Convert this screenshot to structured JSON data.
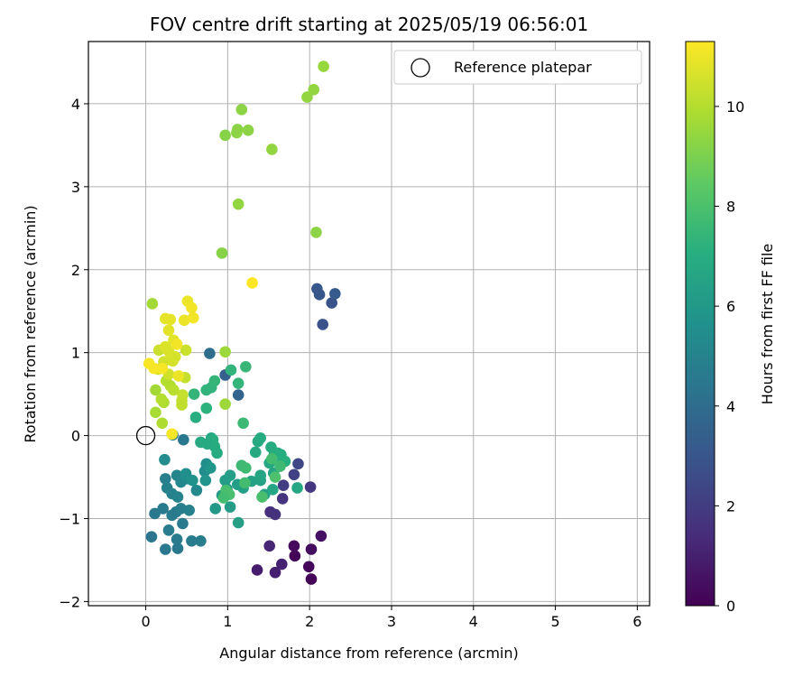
{
  "chart_data": {
    "type": "scatter",
    "title": "FOV centre drift starting at 2025/05/19 06:56:01",
    "xlabel": "Angular distance from reference (arcmin)",
    "ylabel": "Rotation from reference (arcmin)",
    "xlim": [
      -0.7,
      6.15
    ],
    "ylim": [
      -2.05,
      4.75
    ],
    "xticks": [
      0,
      1,
      2,
      3,
      4,
      5,
      6
    ],
    "yticks": [
      -2,
      -1,
      0,
      1,
      2,
      3,
      4
    ],
    "grid": true,
    "legend": {
      "position": "top-right",
      "entries": [
        "Reference platepar"
      ]
    },
    "reference_point": {
      "x": 0,
      "y": 0,
      "label": "Reference platepar"
    },
    "colorbar": {
      "label": "Hours from first FF file",
      "colormap": "viridis",
      "range": [
        0,
        11.3
      ],
      "ticks": [
        0,
        2,
        4,
        6,
        8,
        10
      ]
    },
    "points": [
      {
        "x": 1.82,
        "y": -1.45,
        "h": 0.1
      },
      {
        "x": 2.02,
        "y": -1.73,
        "h": 0.1
      },
      {
        "x": 1.99,
        "y": -1.58,
        "h": 0.2
      },
      {
        "x": 1.81,
        "y": -1.33,
        "h": 0.3
      },
      {
        "x": 2.02,
        "y": -1.37,
        "h": 0.4
      },
      {
        "x": 2.14,
        "y": -1.21,
        "h": 0.5
      },
      {
        "x": 1.36,
        "y": -1.62,
        "h": 0.9
      },
      {
        "x": 1.58,
        "y": -1.65,
        "h": 1.0
      },
      {
        "x": 1.66,
        "y": -1.55,
        "h": 1.1
      },
      {
        "x": 1.51,
        "y": -1.33,
        "h": 1.2
      },
      {
        "x": 1.52,
        "y": -0.92,
        "h": 1.5
      },
      {
        "x": 1.58,
        "y": -0.95,
        "h": 1.6
      },
      {
        "x": 1.67,
        "y": -0.76,
        "h": 1.7
      },
      {
        "x": 2.01,
        "y": -0.62,
        "h": 1.8
      },
      {
        "x": 1.68,
        "y": -0.6,
        "h": 2.0
      },
      {
        "x": 1.81,
        "y": -0.47,
        "h": 2.2
      },
      {
        "x": 1.86,
        "y": -0.34,
        "h": 2.4
      },
      {
        "x": 2.16,
        "y": 1.34,
        "h": 2.9
      },
      {
        "x": 2.27,
        "y": 1.6,
        "h": 2.9
      },
      {
        "x": 2.12,
        "y": 1.7,
        "h": 3.0
      },
      {
        "x": 2.09,
        "y": 1.77,
        "h": 3.1
      },
      {
        "x": 2.31,
        "y": 1.71,
        "h": 3.2
      },
      {
        "x": 0.97,
        "y": 0.73,
        "h": 3.4
      },
      {
        "x": 1.13,
        "y": 0.49,
        "h": 3.6
      },
      {
        "x": 0.78,
        "y": 0.99,
        "h": 4.0
      },
      {
        "x": 0.46,
        "y": -0.05,
        "h": 4.5
      },
      {
        "x": 0.33,
        "y": 0.01,
        "h": 4.6
      },
      {
        "x": 0.07,
        "y": -1.22,
        "h": 4.4
      },
      {
        "x": 0.24,
        "y": -1.37,
        "h": 4.5
      },
      {
        "x": 0.39,
        "y": -1.36,
        "h": 4.5
      },
      {
        "x": 0.38,
        "y": -1.25,
        "h": 4.6
      },
      {
        "x": 0.56,
        "y": -1.27,
        "h": 4.7
      },
      {
        "x": 0.67,
        "y": -1.27,
        "h": 4.8
      },
      {
        "x": 0.45,
        "y": -1.06,
        "h": 4.6
      },
      {
        "x": 0.28,
        "y": -1.14,
        "h": 4.7
      },
      {
        "x": 0.11,
        "y": -0.94,
        "h": 4.5
      },
      {
        "x": 0.21,
        "y": -0.88,
        "h": 4.6
      },
      {
        "x": 0.32,
        "y": -0.96,
        "h": 4.7
      },
      {
        "x": 0.37,
        "y": -0.92,
        "h": 4.6
      },
      {
        "x": 0.43,
        "y": -0.88,
        "h": 4.8
      },
      {
        "x": 0.53,
        "y": -0.9,
        "h": 4.9
      },
      {
        "x": 0.24,
        "y": -0.52,
        "h": 4.8
      },
      {
        "x": 0.26,
        "y": -0.63,
        "h": 4.9
      },
      {
        "x": 0.32,
        "y": -0.7,
        "h": 5.0
      },
      {
        "x": 0.39,
        "y": -0.74,
        "h": 5.0
      },
      {
        "x": 0.38,
        "y": -0.48,
        "h": 5.1
      },
      {
        "x": 0.43,
        "y": -0.56,
        "h": 5.2
      },
      {
        "x": 0.5,
        "y": -0.52,
        "h": 5.3
      },
      {
        "x": 0.62,
        "y": -0.66,
        "h": 5.3
      },
      {
        "x": 0.72,
        "y": -0.43,
        "h": 5.5
      },
      {
        "x": 0.74,
        "y": -0.34,
        "h": 5.6
      },
      {
        "x": 0.23,
        "y": -0.29,
        "h": 5.4
      },
      {
        "x": 0.49,
        "y": -0.46,
        "h": 5.6
      },
      {
        "x": 0.57,
        "y": -0.54,
        "h": 5.7
      },
      {
        "x": 0.73,
        "y": -0.54,
        "h": 5.8
      },
      {
        "x": 0.79,
        "y": -0.39,
        "h": 5.9
      },
      {
        "x": 0.85,
        "y": -0.88,
        "h": 6.0
      },
      {
        "x": 0.93,
        "y": -0.72,
        "h": 6.1
      },
      {
        "x": 0.99,
        "y": -0.64,
        "h": 6.1
      },
      {
        "x": 1.03,
        "y": -0.86,
        "h": 6.2
      },
      {
        "x": 0.97,
        "y": -0.54,
        "h": 6.2
      },
      {
        "x": 1.03,
        "y": -0.48,
        "h": 6.3
      },
      {
        "x": 1.12,
        "y": -0.59,
        "h": 6.3
      },
      {
        "x": 1.13,
        "y": -1.05,
        "h": 6.4
      },
      {
        "x": 1.19,
        "y": -0.63,
        "h": 6.4
      },
      {
        "x": 1.29,
        "y": -0.55,
        "h": 6.5
      },
      {
        "x": 1.4,
        "y": -0.54,
        "h": 6.5
      },
      {
        "x": 1.45,
        "y": -0.71,
        "h": 6.5
      },
      {
        "x": 1.4,
        "y": -0.48,
        "h": 6.6
      },
      {
        "x": 1.55,
        "y": -0.65,
        "h": 6.6
      },
      {
        "x": 1.56,
        "y": -0.45,
        "h": 6.6
      },
      {
        "x": 1.85,
        "y": -0.63,
        "h": 6.7
      },
      {
        "x": 1.51,
        "y": -0.33,
        "h": 6.7
      },
      {
        "x": 1.57,
        "y": -0.22,
        "h": 6.7
      },
      {
        "x": 1.34,
        "y": -0.2,
        "h": 6.8
      },
      {
        "x": 1.37,
        "y": -0.07,
        "h": 6.8
      },
      {
        "x": 1.4,
        "y": -0.03,
        "h": 6.9
      },
      {
        "x": 1.63,
        "y": -0.29,
        "h": 6.9
      },
      {
        "x": 1.53,
        "y": -0.14,
        "h": 6.9
      },
      {
        "x": 1.61,
        "y": -0.21,
        "h": 7.0
      },
      {
        "x": 1.65,
        "y": -0.23,
        "h": 7.0
      },
      {
        "x": 1.7,
        "y": -0.31,
        "h": 7.1
      },
      {
        "x": 0.67,
        "y": -0.08,
        "h": 6.8
      },
      {
        "x": 0.8,
        "y": -0.03,
        "h": 6.7
      },
      {
        "x": 0.84,
        "y": -0.13,
        "h": 6.9
      },
      {
        "x": 0.87,
        "y": -0.21,
        "h": 6.9
      },
      {
        "x": 0.82,
        "y": -0.05,
        "h": 7.0
      },
      {
        "x": 0.75,
        "y": -0.1,
        "h": 6.8
      },
      {
        "x": 0.61,
        "y": 0.22,
        "h": 7.0
      },
      {
        "x": 0.74,
        "y": 0.33,
        "h": 7.2
      },
      {
        "x": 0.74,
        "y": 0.55,
        "h": 7.3
      },
      {
        "x": 0.8,
        "y": 0.58,
        "h": 7.3
      },
      {
        "x": 0.84,
        "y": 0.66,
        "h": 7.4
      },
      {
        "x": 0.59,
        "y": 0.5,
        "h": 7.4
      },
      {
        "x": 1.04,
        "y": 0.79,
        "h": 7.3
      },
      {
        "x": 1.13,
        "y": 0.63,
        "h": 7.4
      },
      {
        "x": 1.22,
        "y": 0.83,
        "h": 7.5
      },
      {
        "x": 1.19,
        "y": 0.15,
        "h": 7.6
      },
      {
        "x": 1.17,
        "y": -0.36,
        "h": 7.6
      },
      {
        "x": 1.22,
        "y": -0.39,
        "h": 7.7
      },
      {
        "x": 1.64,
        "y": -0.37,
        "h": 7.7
      },
      {
        "x": 1.54,
        "y": -0.28,
        "h": 7.8
      },
      {
        "x": 1.21,
        "y": -0.57,
        "h": 7.8
      },
      {
        "x": 0.98,
        "y": -0.66,
        "h": 7.9
      },
      {
        "x": 1.02,
        "y": -0.71,
        "h": 7.9
      },
      {
        "x": 0.95,
        "y": -0.75,
        "h": 7.8
      },
      {
        "x": 1.42,
        "y": -0.74,
        "h": 7.9
      },
      {
        "x": 1.58,
        "y": -0.5,
        "h": 8.0
      },
      {
        "x": 0.93,
        "y": 2.2,
        "h": 9.2
      },
      {
        "x": 0.97,
        "y": 3.62,
        "h": 9.2
      },
      {
        "x": 1.11,
        "y": 3.65,
        "h": 9.3
      },
      {
        "x": 1.12,
        "y": 3.69,
        "h": 9.3
      },
      {
        "x": 1.25,
        "y": 3.68,
        "h": 9.3
      },
      {
        "x": 1.17,
        "y": 3.93,
        "h": 9.3
      },
      {
        "x": 1.54,
        "y": 3.45,
        "h": 9.4
      },
      {
        "x": 1.13,
        "y": 2.79,
        "h": 9.4
      },
      {
        "x": 2.08,
        "y": 2.45,
        "h": 9.3
      },
      {
        "x": 1.97,
        "y": 4.08,
        "h": 9.4
      },
      {
        "x": 2.05,
        "y": 4.17,
        "h": 9.4
      },
      {
        "x": 2.17,
        "y": 4.45,
        "h": 9.5
      },
      {
        "x": 0.97,
        "y": 1.01,
        "h": 9.6
      },
      {
        "x": 0.97,
        "y": 0.38,
        "h": 9.6
      },
      {
        "x": 0.08,
        "y": 1.59,
        "h": 9.7
      },
      {
        "x": 0.12,
        "y": 0.55,
        "h": 9.7
      },
      {
        "x": 0.12,
        "y": 0.28,
        "h": 9.8
      },
      {
        "x": 0.2,
        "y": 0.15,
        "h": 9.9
      },
      {
        "x": 0.22,
        "y": 0.4,
        "h": 9.9
      },
      {
        "x": 0.19,
        "y": 0.44,
        "h": 10.0
      },
      {
        "x": 0.3,
        "y": 0.6,
        "h": 10.0
      },
      {
        "x": 0.25,
        "y": 0.66,
        "h": 10.0
      },
      {
        "x": 0.34,
        "y": 0.55,
        "h": 10.1
      },
      {
        "x": 0.44,
        "y": 0.42,
        "h": 10.2
      },
      {
        "x": 0.44,
        "y": 0.37,
        "h": 10.2
      },
      {
        "x": 0.45,
        "y": 0.49,
        "h": 10.3
      },
      {
        "x": 0.48,
        "y": 0.7,
        "h": 10.3
      },
      {
        "x": 0.49,
        "y": 1.03,
        "h": 10.4
      },
      {
        "x": 0.16,
        "y": 1.03,
        "h": 10.4
      },
      {
        "x": 0.15,
        "y": 0.8,
        "h": 10.5
      },
      {
        "x": 0.22,
        "y": 0.89,
        "h": 10.5
      },
      {
        "x": 0.28,
        "y": 0.74,
        "h": 10.5
      },
      {
        "x": 0.3,
        "y": 0.93,
        "h": 10.6
      },
      {
        "x": 0.33,
        "y": 0.9,
        "h": 10.6
      },
      {
        "x": 0.36,
        "y": 0.95,
        "h": 10.6
      },
      {
        "x": 0.28,
        "y": 1.02,
        "h": 10.7
      },
      {
        "x": 0.24,
        "y": 1.07,
        "h": 10.7
      },
      {
        "x": 0.34,
        "y": 1.15,
        "h": 10.8
      },
      {
        "x": 0.28,
        "y": 1.27,
        "h": 10.8
      },
      {
        "x": 0.24,
        "y": 1.41,
        "h": 10.9
      },
      {
        "x": 0.3,
        "y": 1.4,
        "h": 10.9
      },
      {
        "x": 0.47,
        "y": 1.39,
        "h": 11.0
      },
      {
        "x": 0.51,
        "y": 1.62,
        "h": 11.0
      },
      {
        "x": 0.56,
        "y": 1.54,
        "h": 11.1
      },
      {
        "x": 0.58,
        "y": 1.42,
        "h": 11.1
      },
      {
        "x": 0.4,
        "y": 0.72,
        "h": 11.0
      },
      {
        "x": 0.38,
        "y": 1.1,
        "h": 11.1
      },
      {
        "x": 0.04,
        "y": 0.87,
        "h": 11.2
      },
      {
        "x": 0.1,
        "y": 0.81,
        "h": 11.2
      },
      {
        "x": 0.2,
        "y": 0.81,
        "h": 11.2
      },
      {
        "x": 0.32,
        "y": 0.02,
        "h": 11.2
      },
      {
        "x": 1.3,
        "y": 1.84,
        "h": 11.3
      }
    ]
  }
}
